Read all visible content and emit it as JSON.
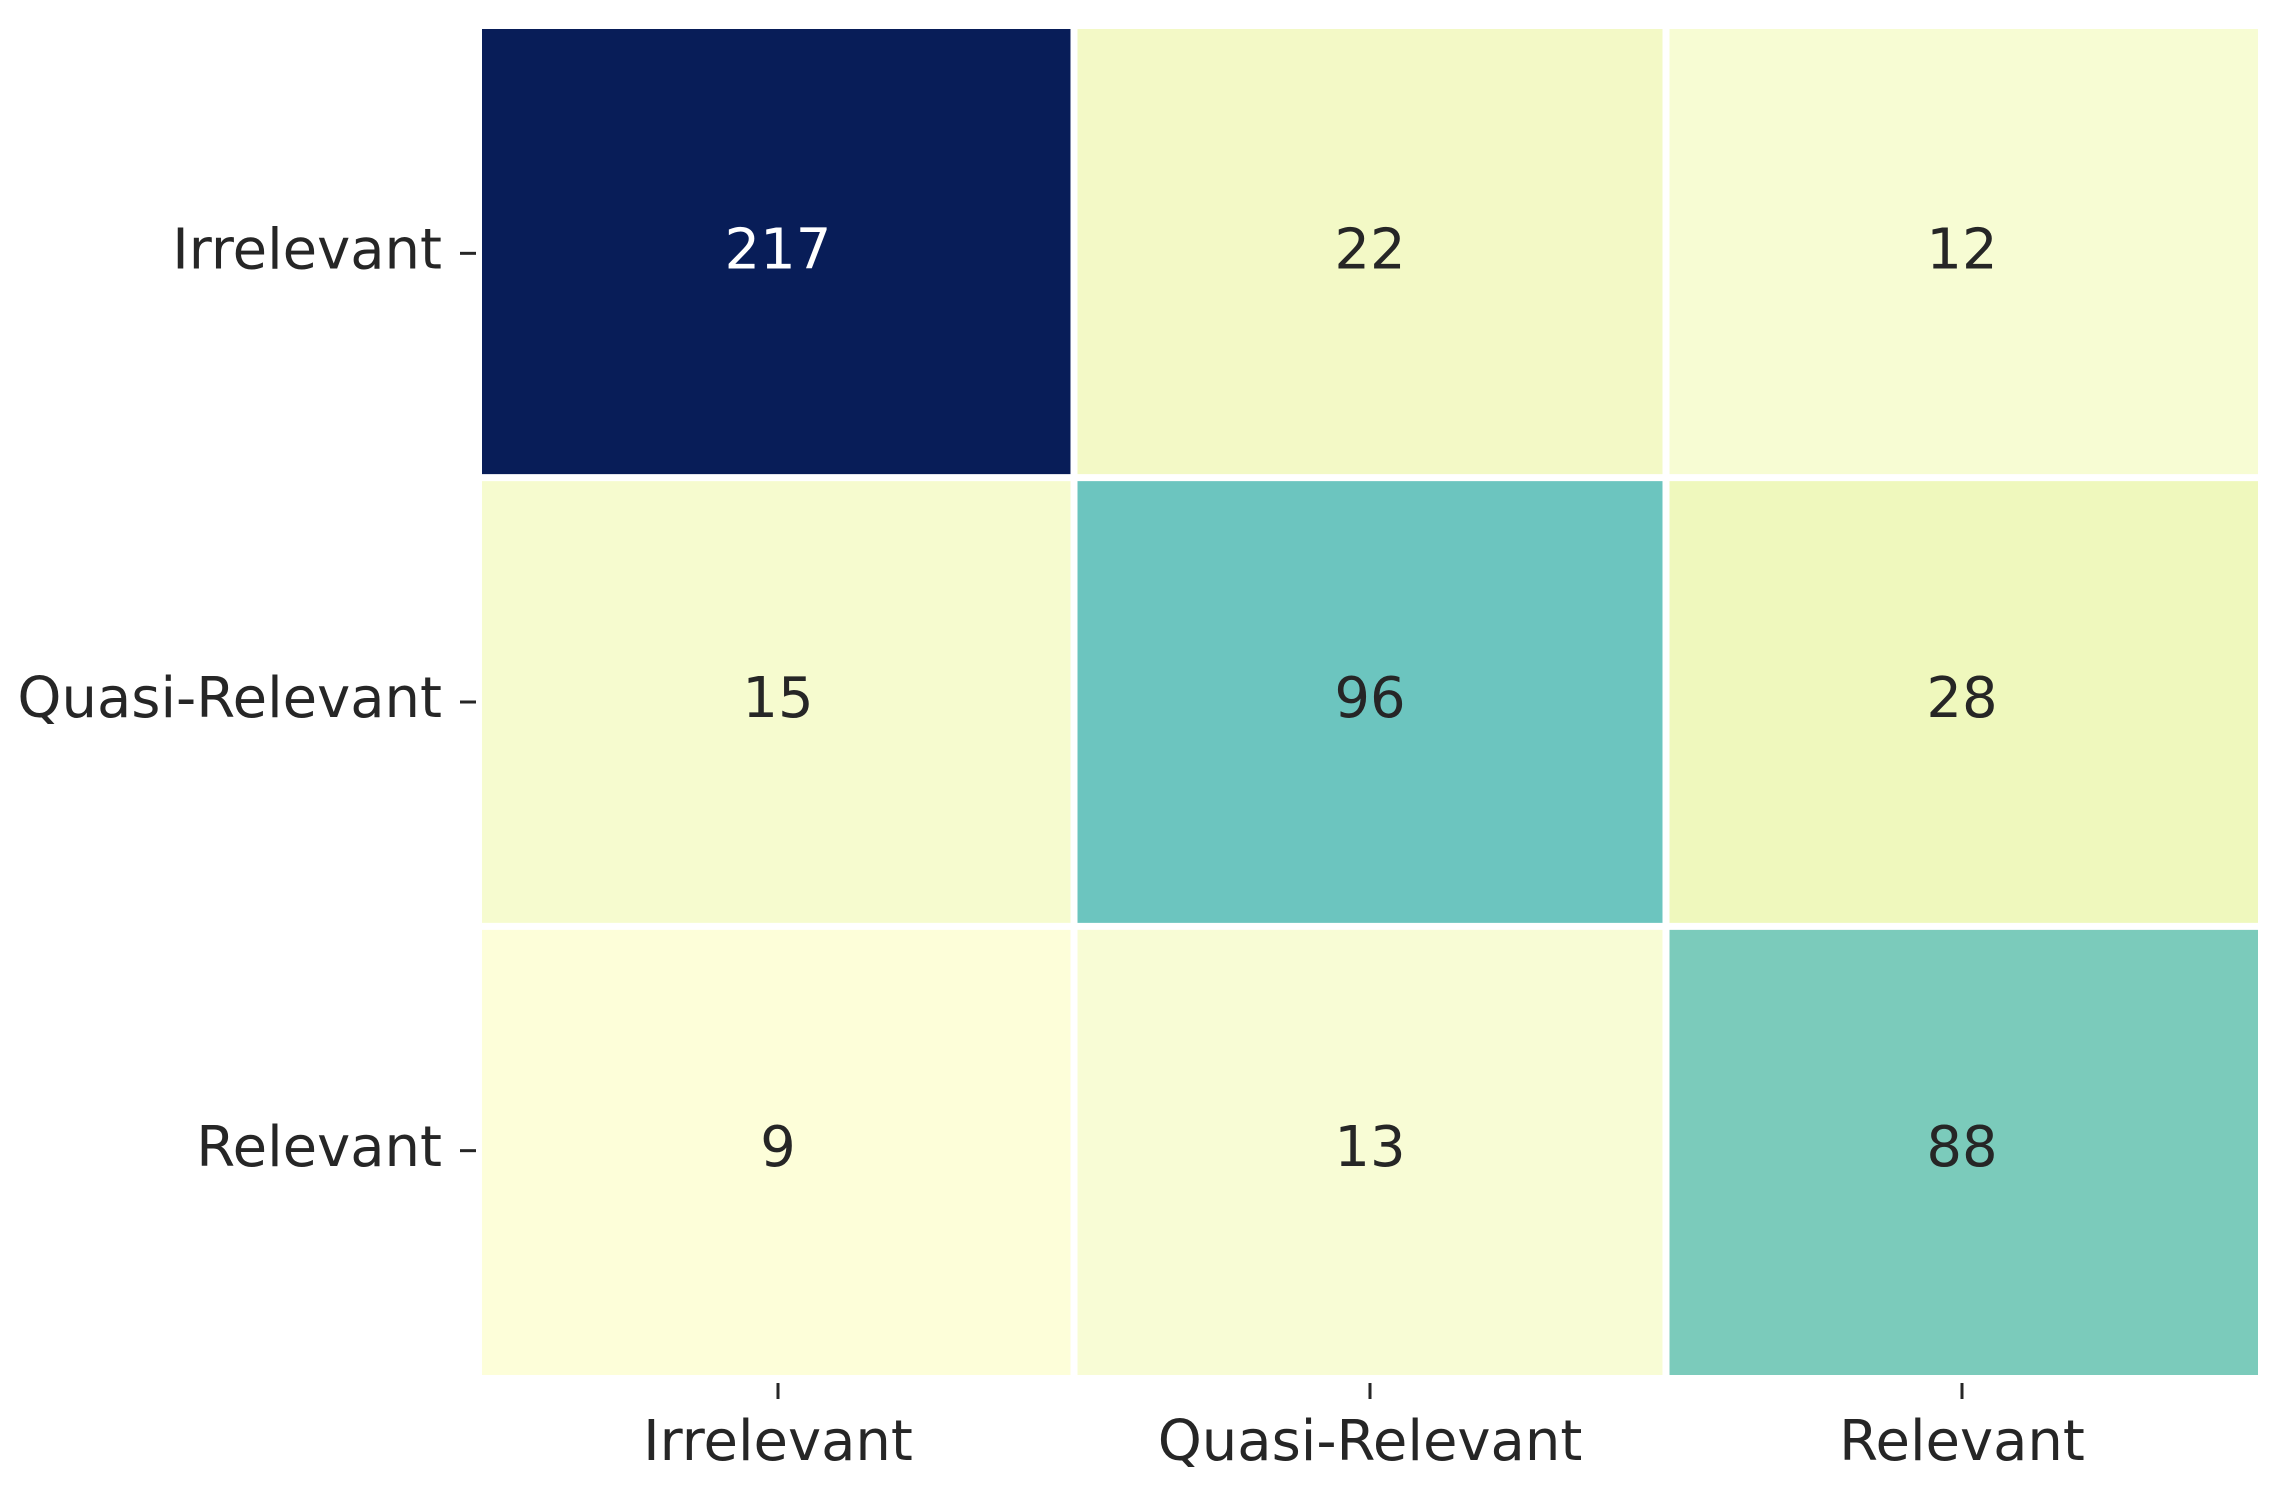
{
  "chart_data": {
    "type": "heatmap",
    "x_categories": [
      "Irrelevant",
      "Quasi-Relevant",
      "Relevant"
    ],
    "y_categories": [
      "Irrelevant",
      "Quasi-Relevant",
      "Relevant"
    ],
    "values": [
      [
        217,
        22,
        12
      ],
      [
        15,
        96,
        28
      ],
      [
        9,
        13,
        88
      ]
    ],
    "colors": [
      [
        "#081d58",
        "#f3f9c6",
        "#f7fcd3"
      ],
      [
        "#f6fbcf",
        "#6cc5bf",
        "#eff8bd"
      ],
      [
        "#fdfed9",
        "#f8fcd5",
        "#7bcbbb"
      ]
    ],
    "colormap": "YlGnBu"
  }
}
